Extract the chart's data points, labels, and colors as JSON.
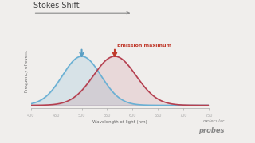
{
  "title": "Stokes Shift",
  "xlabel": "Wavelength of light (nm)",
  "ylabel": "Frequency of event",
  "xlim": [
    400,
    750
  ],
  "xticks": [
    400,
    450,
    500,
    550,
    600,
    650,
    700,
    750
  ],
  "excitation_peak": 500,
  "emission_peak": 565,
  "excitation_color": "#6ab0d4",
  "emission_color": "#b54050",
  "annotation_text": "Emission maximum",
  "annotation_color": "#c0392b",
  "arrow_excitation_color": "#5b9fc4",
  "arrow_emission_color": "#c0392b",
  "background_color": "#f0eeec",
  "stokes_arrow_color": "#888888",
  "brand_text1": "molecular",
  "brand_text2": "probes",
  "brand_color": "#888888"
}
